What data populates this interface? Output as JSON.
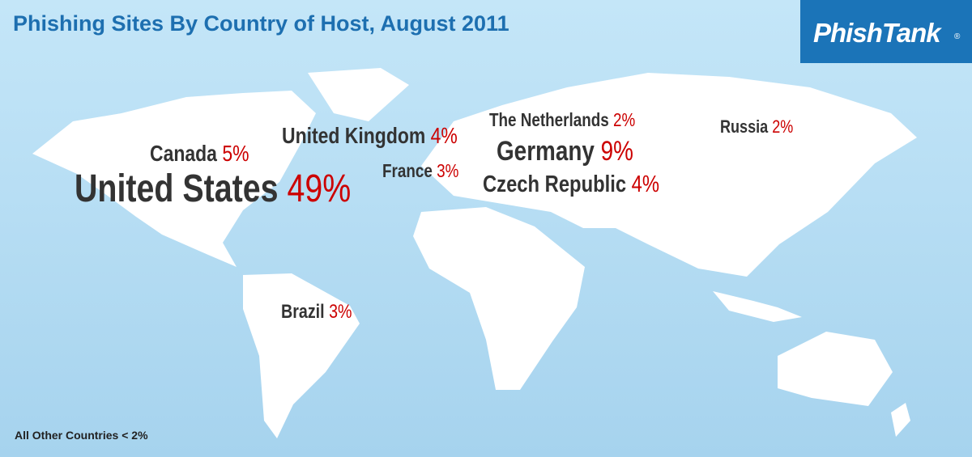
{
  "header": {
    "title": "Phishing Sites By Country of Host, August 2011",
    "logo": "PhishTank",
    "logo_mark": "®"
  },
  "countries": [
    {
      "name": "United States",
      "percent": "49%"
    },
    {
      "name": "Canada",
      "percent": "5%"
    },
    {
      "name": "United Kingdom",
      "percent": "4%"
    },
    {
      "name": "The Netherlands",
      "percent": "2%"
    },
    {
      "name": "Germany",
      "percent": "9%"
    },
    {
      "name": "France",
      "percent": "3%"
    },
    {
      "name": "Czech Republic",
      "percent": "4%"
    },
    {
      "name": "Russia",
      "percent": "2%"
    },
    {
      "name": "Brazil",
      "percent": "3%"
    }
  ],
  "footnote": "All Other Countries < 2%"
}
